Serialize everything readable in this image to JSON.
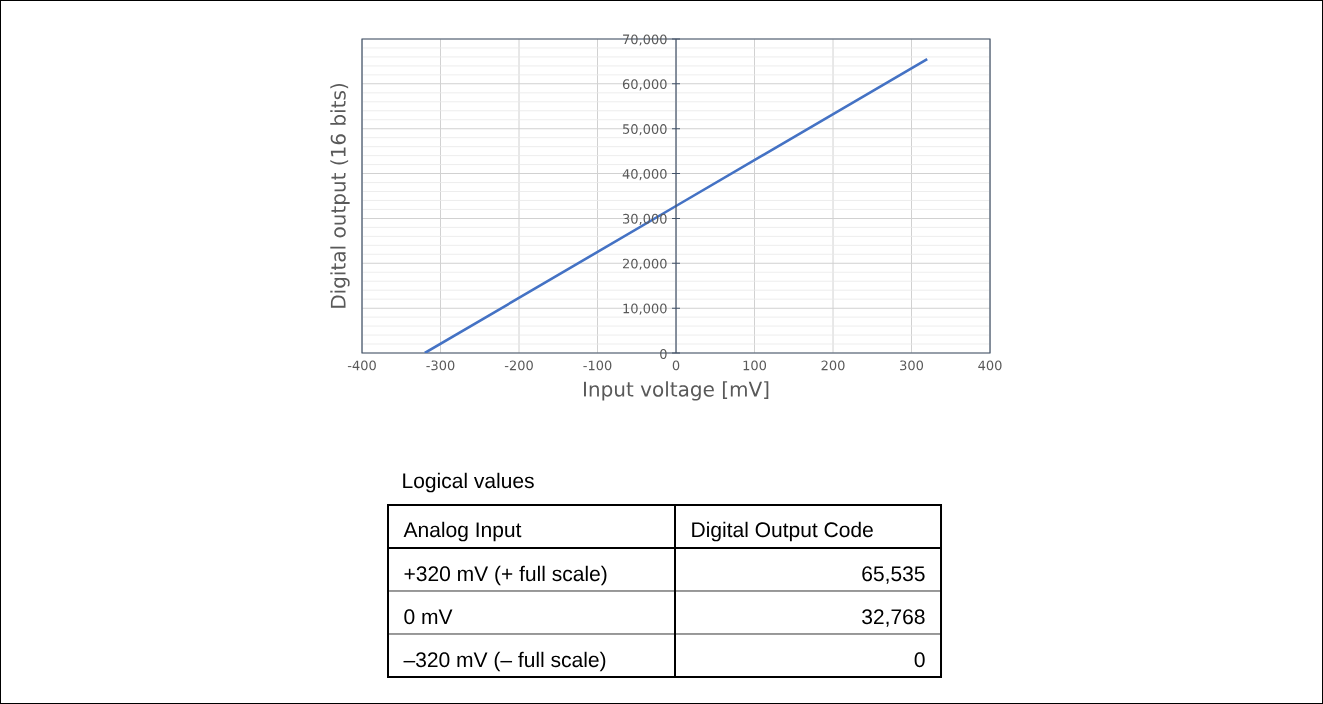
{
  "chart_data": [
    {
      "type": "line",
      "xlabel": "Input voltage [mV]",
      "ylabel": "Digital output (16 bits)",
      "x": [
        -320,
        0,
        320
      ],
      "values": [
        0,
        32768,
        65535
      ],
      "color": "#4472c4",
      "xlim": [
        -400,
        400
      ],
      "xticks": [
        -400,
        -300,
        -200,
        -100,
        0,
        100,
        200,
        300,
        400
      ],
      "ylim": [
        0,
        70000
      ],
      "yticks": [
        0,
        {
          "value": 10000,
          "label": "10,000"
        },
        {
          "value": 20000,
          "label": "20,000"
        },
        {
          "value": 30000,
          "label": "30,000"
        },
        {
          "value": 40000,
          "label": "40,000"
        },
        {
          "value": 50000,
          "label": "50,000"
        },
        {
          "value": 60000,
          "label": "60,000"
        },
        {
          "value": 70000,
          "label": "70,000"
        }
      ],
      "grid": true
    },
    {
      "type": "other",
      "title": "Logical values",
      "annotations": [
        "Analog Input",
        "Digital Output Code"
      ],
      "categories": [
        "+320 mV (+ full scale)",
        "0 mV",
        "–320 mV (– full scale)"
      ],
      "value_labels": [
        "65,535",
        "32,768",
        "0"
      ]
    }
  ]
}
